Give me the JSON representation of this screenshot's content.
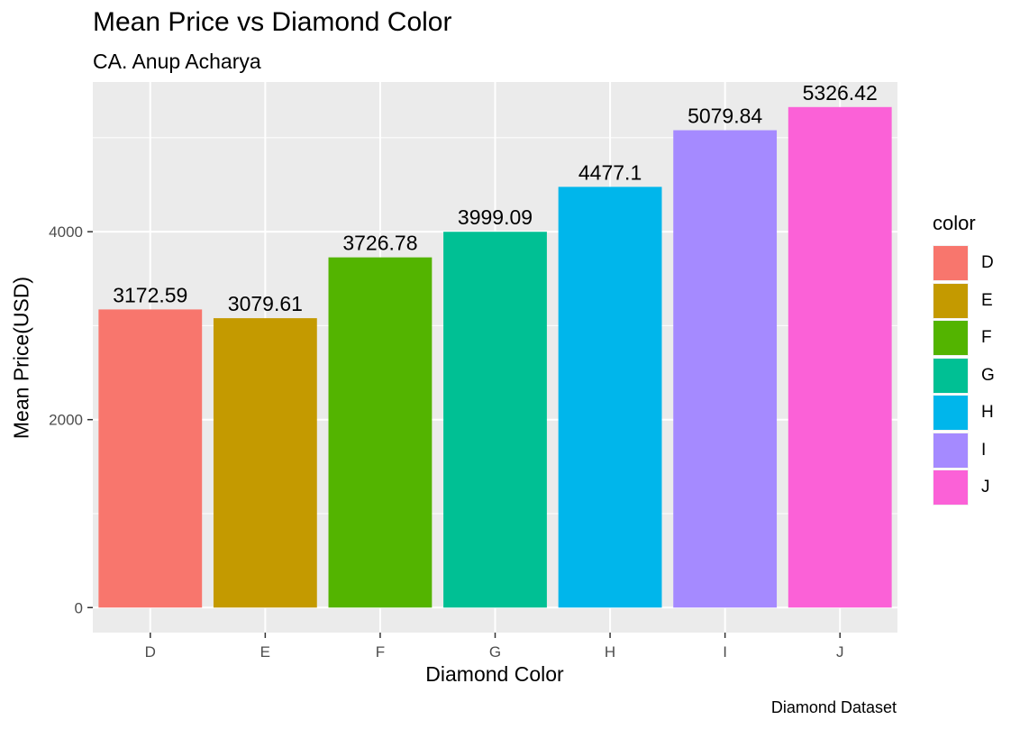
{
  "chart_data": {
    "type": "bar",
    "title": "Mean Price vs Diamond Color",
    "subtitle": "CA. Anup Acharya",
    "xlabel": "Diamond Color",
    "ylabel": "Mean Price(USD)",
    "caption": "Diamond Dataset",
    "categories": [
      "D",
      "E",
      "F",
      "G",
      "H",
      "I",
      "J"
    ],
    "values": [
      3172.59,
      3079.61,
      3726.78,
      3999.09,
      4477.1,
      5079.84,
      5326.42
    ],
    "data_labels": [
      "3172.59",
      "3079.61",
      "3726.78",
      "3999.09",
      "4477.1",
      "5079.84",
      "5326.42"
    ],
    "colors": [
      "#F8766D",
      "#C49A00",
      "#53B400",
      "#00C094",
      "#00B6EB",
      "#A58AFF",
      "#FB61D7"
    ],
    "y_ticks": [
      0,
      2000,
      4000
    ],
    "y_tick_labels": [
      "0",
      "2000",
      "4000"
    ],
    "ylim": [
      -266,
      5593
    ],
    "grid": true,
    "legend": {
      "title": "color",
      "position": "right",
      "items": [
        "D",
        "E",
        "F",
        "G",
        "H",
        "I",
        "J"
      ]
    }
  }
}
